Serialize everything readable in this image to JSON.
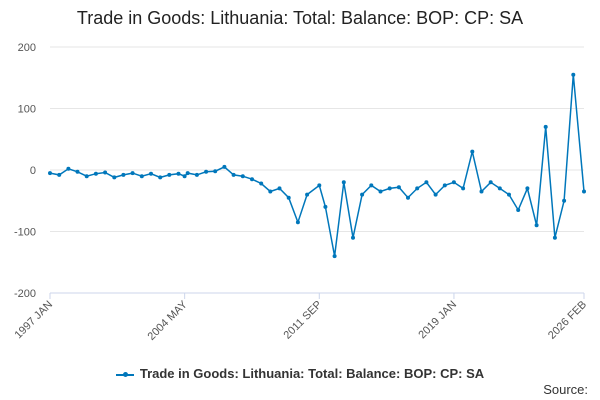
{
  "source_label": "Source:",
  "chart_data": {
    "type": "line",
    "title": "Trade in Goods: Lithuania: Total: Balance: BOP: CP: SA",
    "xlabel": "",
    "ylabel": "",
    "ylim": [
      -200,
      200
    ],
    "y_ticks": [
      200,
      100,
      0,
      -100,
      -200
    ],
    "x_ticks": [
      "1997 JAN",
      "2004 MAY",
      "2011 SEP",
      "2019 JAN",
      "2026 FEB"
    ],
    "grid": true,
    "legend_position": "bottom",
    "colors": {
      "series": "#0077bb",
      "grid": "#e6e6e6",
      "axis": "#ccd6eb"
    },
    "series": [
      {
        "name": "Trade in Goods: Lithuania: Total: Balance: BOP: CP: SA",
        "x": [
          "1997-01",
          "1997-07",
          "1998-01",
          "1998-07",
          "1999-01",
          "1999-07",
          "2000-01",
          "2000-07",
          "2001-01",
          "2001-07",
          "2002-01",
          "2002-07",
          "2003-01",
          "2003-07",
          "2004-01",
          "2004-05",
          "2004-07",
          "2005-01",
          "2005-07",
          "2006-01",
          "2006-07",
          "2007-01",
          "2007-07",
          "2008-01",
          "2008-07",
          "2009-01",
          "2009-07",
          "2010-01",
          "2010-07",
          "2011-01",
          "2011-09",
          "2012-01",
          "2012-07",
          "2013-01",
          "2013-07",
          "2014-01",
          "2014-07",
          "2015-01",
          "2015-07",
          "2016-01",
          "2016-07",
          "2017-01",
          "2017-07",
          "2018-01",
          "2018-07",
          "2019-01",
          "2019-07",
          "2020-01",
          "2020-07",
          "2021-01",
          "2021-07",
          "2022-01",
          "2022-07",
          "2023-01",
          "2023-07",
          "2024-01",
          "2024-07",
          "2025-01",
          "2025-07",
          "2026-02"
        ],
        "values": [
          -5,
          -8,
          2,
          -3,
          -10,
          -6,
          -4,
          -12,
          -8,
          -5,
          -10,
          -6,
          -12,
          -8,
          -6,
          -10,
          -5,
          -8,
          -3,
          -2,
          5,
          -8,
          -10,
          -15,
          -22,
          -35,
          -30,
          -45,
          -85,
          -40,
          -25,
          -60,
          -140,
          -20,
          -110,
          -40,
          -25,
          -35,
          -30,
          -28,
          -45,
          -30,
          -20,
          -40,
          -25,
          -20,
          -30,
          30,
          -35,
          -20,
          -30,
          -40,
          -65,
          -30,
          -90,
          70,
          -110,
          -50,
          155,
          -35
        ]
      }
    ]
  }
}
